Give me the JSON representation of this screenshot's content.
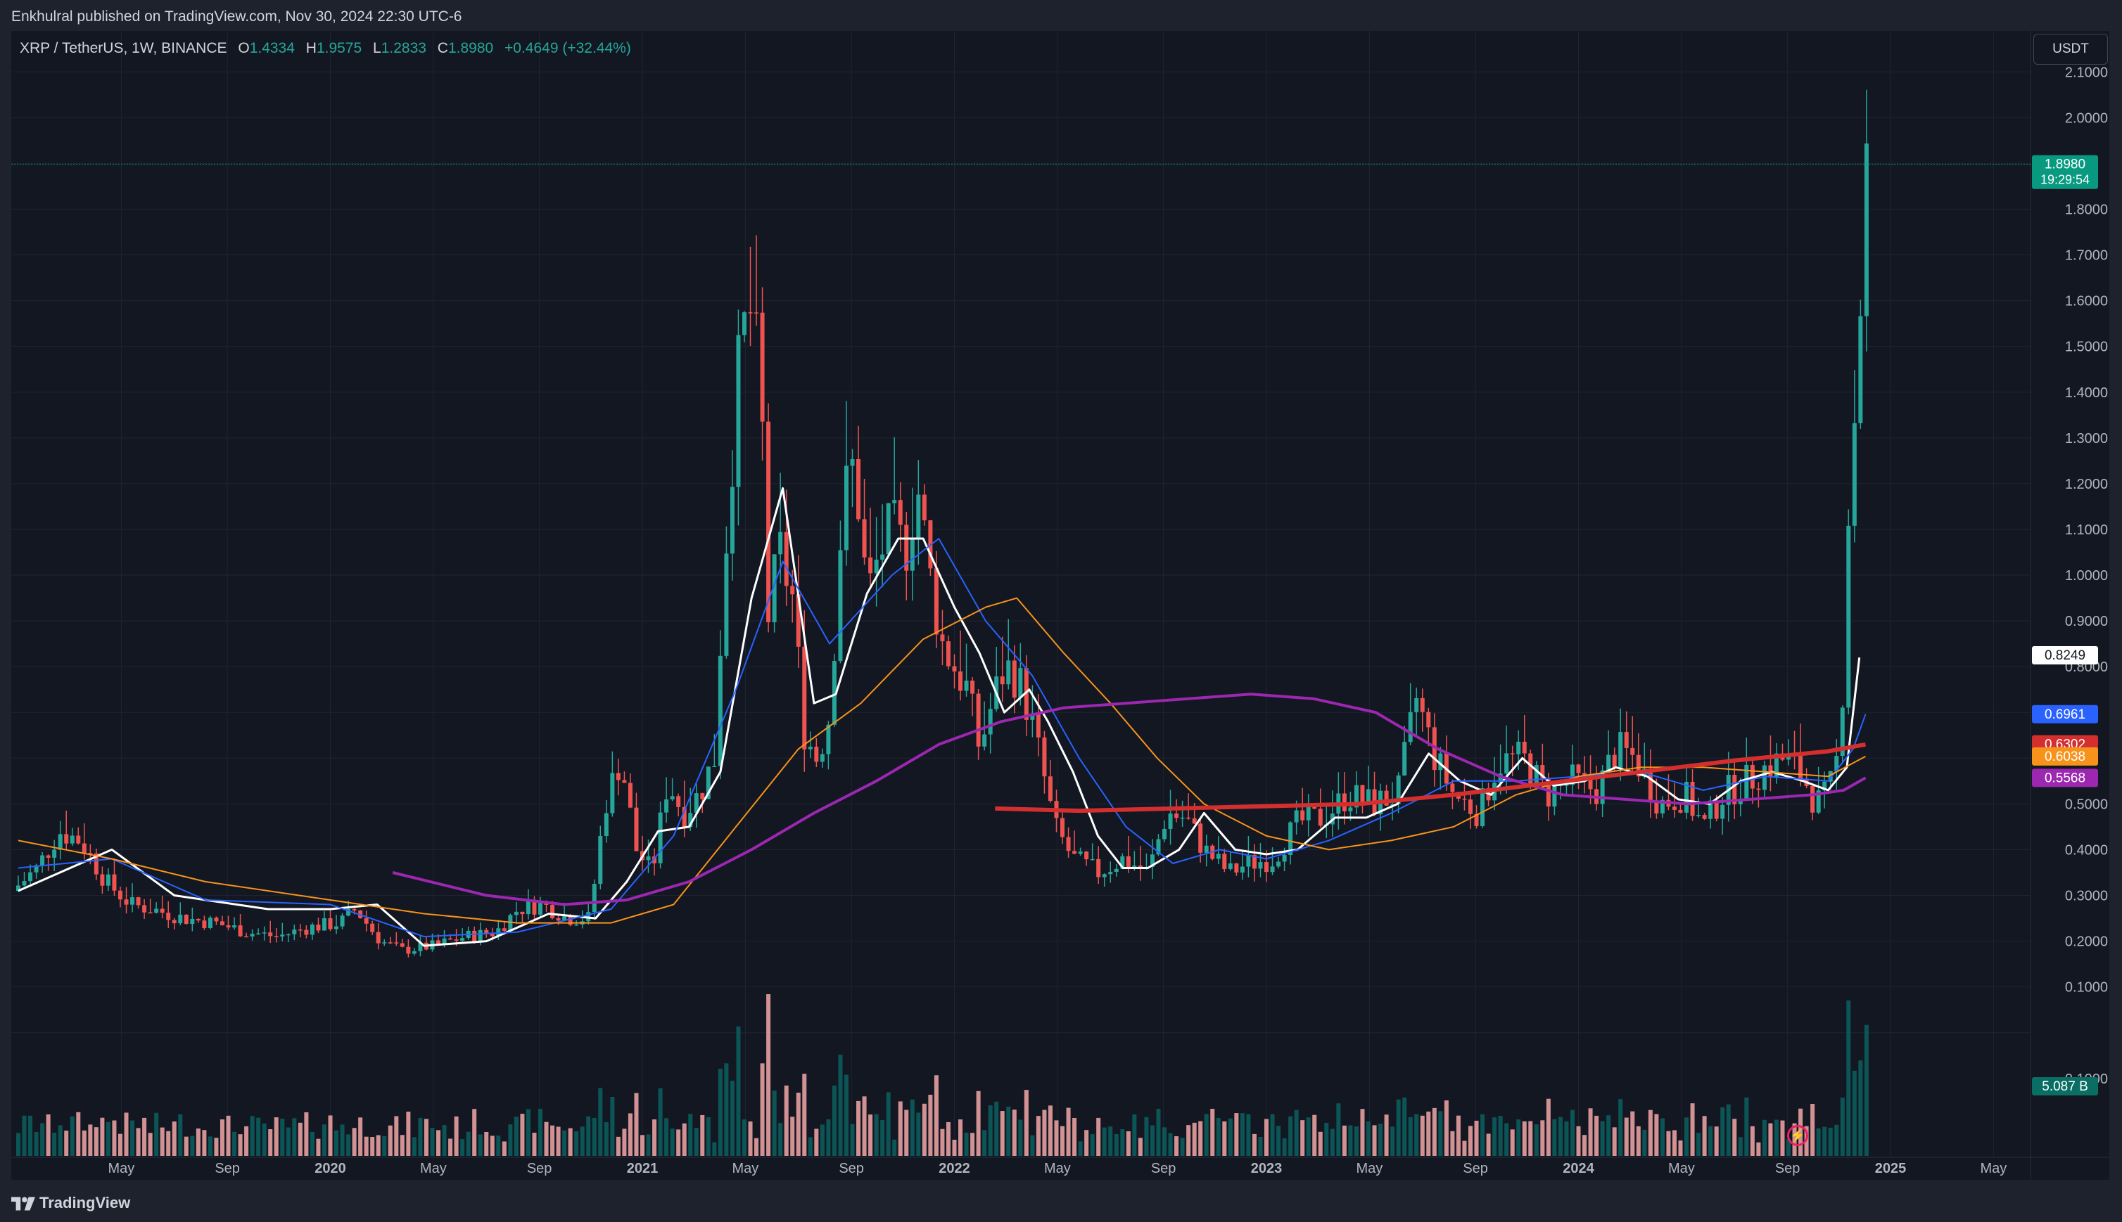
{
  "header": {
    "published": "Enkhulral published on TradingView.com, Nov 30, 2024 22:30 UTC-6"
  },
  "legend": {
    "symbol": "XRP / TetherUS, 1W, BINANCE",
    "o_label": "O",
    "o": "1.4334",
    "h_label": "H",
    "h": "1.9575",
    "l_label": "L",
    "l": "1.2833",
    "c_label": "C",
    "c": "1.8980",
    "change": "+0.4649 (+32.44%)"
  },
  "currency_button": "USDT",
  "footer": {
    "brand": "TradingView"
  },
  "colors": {
    "up": "#26a69a",
    "down": "#ef5350",
    "ma_white": "#ffffff",
    "ma_blue": "#2962ff",
    "ma_orange": "#f7931a",
    "ma_purple": "#9c27b0",
    "ma_red": "#d32f2f",
    "vol_up": "#0b5c5c",
    "vol_down": "#e8a0a0",
    "bg": "#131722"
  },
  "chart_data": {
    "type": "candlestick",
    "title": "XRP / TetherUS, 1W, BINANCE",
    "y_axis": {
      "ticks": [
        "2.1000",
        "2.0000",
        "1.8000",
        "1.7000",
        "1.6000",
        "1.5000",
        "1.4000",
        "1.3000",
        "1.2000",
        "1.1000",
        "1.0000",
        "0.9000",
        "0.8000",
        "0.5000",
        "0.4000",
        "0.3000",
        "0.2000",
        "0.1000",
        "−0.1000"
      ],
      "range": [
        -0.13,
        2.2
      ]
    },
    "x_axis": {
      "ticks": [
        {
          "label": "May",
          "t": 0.33,
          "bold": false
        },
        {
          "label": "Sep",
          "t": 0.67,
          "bold": false
        },
        {
          "label": "2020",
          "t": 1.0,
          "bold": true
        },
        {
          "label": "May",
          "t": 1.33,
          "bold": false
        },
        {
          "label": "Sep",
          "t": 1.67,
          "bold": false
        },
        {
          "label": "2021",
          "t": 2.0,
          "bold": true
        },
        {
          "label": "May",
          "t": 2.33,
          "bold": false
        },
        {
          "label": "Sep",
          "t": 2.67,
          "bold": false
        },
        {
          "label": "2022",
          "t": 3.0,
          "bold": true
        },
        {
          "label": "May",
          "t": 3.33,
          "bold": false
        },
        {
          "label": "Sep",
          "t": 3.67,
          "bold": false
        },
        {
          "label": "2023",
          "t": 4.0,
          "bold": true
        },
        {
          "label": "May",
          "t": 4.33,
          "bold": false
        },
        {
          "label": "Sep",
          "t": 4.67,
          "bold": false
        },
        {
          "label": "2024",
          "t": 5.0,
          "bold": true
        },
        {
          "label": "May",
          "t": 5.33,
          "bold": false
        },
        {
          "label": "Sep",
          "t": 5.67,
          "bold": false
        },
        {
          "label": "2025",
          "t": 6.0,
          "bold": true
        },
        {
          "label": "May",
          "t": 6.33,
          "bold": false
        }
      ]
    },
    "price_close_path": [
      [
        0.0,
        0.31
      ],
      [
        0.08,
        0.36
      ],
      [
        0.15,
        0.44
      ],
      [
        0.22,
        0.42
      ],
      [
        0.3,
        0.33
      ],
      [
        0.38,
        0.28
      ],
      [
        0.45,
        0.27
      ],
      [
        0.55,
        0.25
      ],
      [
        0.65,
        0.24
      ],
      [
        0.75,
        0.22
      ],
      [
        0.85,
        0.21
      ],
      [
        0.95,
        0.23
      ],
      [
        1.05,
        0.24
      ],
      [
        1.1,
        0.27
      ],
      [
        1.18,
        0.2
      ],
      [
        1.25,
        0.18
      ],
      [
        1.35,
        0.19
      ],
      [
        1.45,
        0.21
      ],
      [
        1.55,
        0.22
      ],
      [
        1.62,
        0.27
      ],
      [
        1.7,
        0.28
      ],
      [
        1.78,
        0.25
      ],
      [
        1.85,
        0.25
      ],
      [
        1.9,
        0.5
      ],
      [
        1.95,
        0.6
      ],
      [
        2.0,
        0.4
      ],
      [
        2.05,
        0.35
      ],
      [
        2.1,
        0.55
      ],
      [
        2.15,
        0.48
      ],
      [
        2.2,
        0.52
      ],
      [
        2.25,
        0.6
      ],
      [
        2.28,
        1.0
      ],
      [
        2.32,
        1.4
      ],
      [
        2.36,
        1.6
      ],
      [
        2.4,
        1.4
      ],
      [
        2.42,
        0.9
      ],
      [
        2.46,
        1.05
      ],
      [
        2.5,
        0.95
      ],
      [
        2.54,
        0.65
      ],
      [
        2.58,
        0.6
      ],
      [
        2.62,
        0.7
      ],
      [
        2.66,
        1.15
      ],
      [
        2.7,
        1.25
      ],
      [
        2.74,
        0.95
      ],
      [
        2.78,
        1.05
      ],
      [
        2.82,
        1.1
      ],
      [
        2.86,
        1.05
      ],
      [
        2.9,
        1.2
      ],
      [
        2.94,
        1.0
      ],
      [
        2.98,
        0.85
      ],
      [
        3.02,
        0.8
      ],
      [
        3.06,
        0.75
      ],
      [
        3.1,
        0.62
      ],
      [
        3.14,
        0.72
      ],
      [
        3.18,
        0.8
      ],
      [
        3.22,
        0.78
      ],
      [
        3.26,
        0.7
      ],
      [
        3.3,
        0.58
      ],
      [
        3.34,
        0.45
      ],
      [
        3.4,
        0.38
      ],
      [
        3.48,
        0.35
      ],
      [
        3.56,
        0.38
      ],
      [
        3.64,
        0.35
      ],
      [
        3.7,
        0.48
      ],
      [
        3.76,
        0.47
      ],
      [
        3.82,
        0.4
      ],
      [
        3.9,
        0.35
      ],
      [
        3.96,
        0.37
      ],
      [
        4.04,
        0.38
      ],
      [
        4.12,
        0.46
      ],
      [
        4.2,
        0.47
      ],
      [
        4.28,
        0.52
      ],
      [
        4.36,
        0.5
      ],
      [
        4.44,
        0.52
      ],
      [
        4.5,
        0.73
      ],
      [
        4.56,
        0.6
      ],
      [
        4.62,
        0.52
      ],
      [
        4.7,
        0.48
      ],
      [
        4.76,
        0.59
      ],
      [
        4.84,
        0.6
      ],
      [
        4.92,
        0.52
      ],
      [
        5.0,
        0.55
      ],
      [
        5.08,
        0.53
      ],
      [
        5.14,
        0.62
      ],
      [
        5.2,
        0.6
      ],
      [
        5.28,
        0.5
      ],
      [
        5.36,
        0.52
      ],
      [
        5.42,
        0.45
      ],
      [
        5.48,
        0.52
      ],
      [
        5.56,
        0.55
      ],
      [
        5.62,
        0.58
      ],
      [
        5.68,
        0.6
      ],
      [
        5.74,
        0.56
      ],
      [
        5.78,
        0.5
      ],
      [
        5.82,
        0.52
      ],
      [
        5.86,
        0.63
      ],
      [
        5.88,
        1.1
      ],
      [
        5.9,
        1.3
      ],
      [
        5.92,
        1.55
      ],
      [
        5.94,
        1.9
      ]
    ],
    "series": [
      {
        "name": "MA 0.8249",
        "color": "#ffffff",
        "width": 3,
        "points": [
          [
            0.0,
            0.31
          ],
          [
            0.3,
            0.4
          ],
          [
            0.5,
            0.3
          ],
          [
            0.8,
            0.27
          ],
          [
            1.0,
            0.27
          ],
          [
            1.15,
            0.28
          ],
          [
            1.3,
            0.19
          ],
          [
            1.5,
            0.2
          ],
          [
            1.7,
            0.26
          ],
          [
            1.85,
            0.25
          ],
          [
            1.95,
            0.33
          ],
          [
            2.05,
            0.44
          ],
          [
            2.15,
            0.45
          ],
          [
            2.25,
            0.57
          ],
          [
            2.35,
            0.95
          ],
          [
            2.45,
            1.19
          ],
          [
            2.55,
            0.72
          ],
          [
            2.62,
            0.74
          ],
          [
            2.72,
            0.96
          ],
          [
            2.82,
            1.08
          ],
          [
            2.9,
            1.08
          ],
          [
            3.0,
            0.93
          ],
          [
            3.08,
            0.83
          ],
          [
            3.16,
            0.7
          ],
          [
            3.24,
            0.75
          ],
          [
            3.3,
            0.68
          ],
          [
            3.38,
            0.57
          ],
          [
            3.46,
            0.43
          ],
          [
            3.54,
            0.36
          ],
          [
            3.62,
            0.36
          ],
          [
            3.72,
            0.4
          ],
          [
            3.8,
            0.48
          ],
          [
            3.9,
            0.4
          ],
          [
            4.0,
            0.39
          ],
          [
            4.1,
            0.4
          ],
          [
            4.22,
            0.47
          ],
          [
            4.32,
            0.47
          ],
          [
            4.42,
            0.5
          ],
          [
            4.52,
            0.61
          ],
          [
            4.62,
            0.55
          ],
          [
            4.72,
            0.52
          ],
          [
            4.82,
            0.6
          ],
          [
            4.92,
            0.54
          ],
          [
            5.02,
            0.55
          ],
          [
            5.12,
            0.58
          ],
          [
            5.22,
            0.56
          ],
          [
            5.32,
            0.51
          ],
          [
            5.42,
            0.5
          ],
          [
            5.52,
            0.55
          ],
          [
            5.62,
            0.57
          ],
          [
            5.72,
            0.55
          ],
          [
            5.8,
            0.53
          ],
          [
            5.86,
            0.58
          ],
          [
            5.9,
            0.82
          ]
        ]
      },
      {
        "name": "MA 0.6961",
        "color": "#2962ff",
        "width": 2,
        "points": [
          [
            0.0,
            0.36
          ],
          [
            0.3,
            0.38
          ],
          [
            0.6,
            0.29
          ],
          [
            1.0,
            0.28
          ],
          [
            1.3,
            0.21
          ],
          [
            1.6,
            0.22
          ],
          [
            1.9,
            0.27
          ],
          [
            2.1,
            0.43
          ],
          [
            2.3,
            0.75
          ],
          [
            2.45,
            1.03
          ],
          [
            2.6,
            0.85
          ],
          [
            2.8,
            1.0
          ],
          [
            2.95,
            1.08
          ],
          [
            3.1,
            0.9
          ],
          [
            3.25,
            0.78
          ],
          [
            3.4,
            0.6
          ],
          [
            3.55,
            0.45
          ],
          [
            3.7,
            0.37
          ],
          [
            3.85,
            0.4
          ],
          [
            4.0,
            0.38
          ],
          [
            4.2,
            0.42
          ],
          [
            4.4,
            0.48
          ],
          [
            4.6,
            0.55
          ],
          [
            4.8,
            0.55
          ],
          [
            5.0,
            0.56
          ],
          [
            5.2,
            0.57
          ],
          [
            5.4,
            0.53
          ],
          [
            5.6,
            0.56
          ],
          [
            5.8,
            0.55
          ],
          [
            5.88,
            0.62
          ],
          [
            5.92,
            0.696
          ]
        ]
      },
      {
        "name": "MA 0.6038",
        "color": "#f7931a",
        "width": 2,
        "points": [
          [
            0.0,
            0.42
          ],
          [
            0.3,
            0.38
          ],
          [
            0.6,
            0.33
          ],
          [
            1.0,
            0.29
          ],
          [
            1.3,
            0.26
          ],
          [
            1.6,
            0.24
          ],
          [
            1.9,
            0.24
          ],
          [
            2.1,
            0.28
          ],
          [
            2.3,
            0.45
          ],
          [
            2.5,
            0.62
          ],
          [
            2.7,
            0.72
          ],
          [
            2.9,
            0.86
          ],
          [
            3.1,
            0.93
          ],
          [
            3.2,
            0.95
          ],
          [
            3.35,
            0.83
          ],
          [
            3.5,
            0.72
          ],
          [
            3.65,
            0.6
          ],
          [
            3.8,
            0.5
          ],
          [
            4.0,
            0.43
          ],
          [
            4.2,
            0.4
          ],
          [
            4.4,
            0.42
          ],
          [
            4.6,
            0.45
          ],
          [
            4.8,
            0.52
          ],
          [
            5.0,
            0.56
          ],
          [
            5.2,
            0.58
          ],
          [
            5.4,
            0.58
          ],
          [
            5.6,
            0.57
          ],
          [
            5.8,
            0.56
          ],
          [
            5.92,
            0.604
          ]
        ]
      },
      {
        "name": "MA 0.5568",
        "color": "#9c27b0",
        "width": 4,
        "points": [
          [
            1.2,
            0.35
          ],
          [
            1.5,
            0.3
          ],
          [
            1.75,
            0.28
          ],
          [
            1.95,
            0.29
          ],
          [
            2.15,
            0.33
          ],
          [
            2.35,
            0.4
          ],
          [
            2.55,
            0.48
          ],
          [
            2.75,
            0.55
          ],
          [
            2.95,
            0.63
          ],
          [
            3.15,
            0.68
          ],
          [
            3.35,
            0.71
          ],
          [
            3.55,
            0.72
          ],
          [
            3.75,
            0.73
          ],
          [
            3.95,
            0.74
          ],
          [
            4.15,
            0.73
          ],
          [
            4.35,
            0.7
          ],
          [
            4.55,
            0.62
          ],
          [
            4.75,
            0.56
          ],
          [
            4.95,
            0.52
          ],
          [
            5.15,
            0.51
          ],
          [
            5.35,
            0.5
          ],
          [
            5.55,
            0.51
          ],
          [
            5.75,
            0.52
          ],
          [
            5.85,
            0.53
          ],
          [
            5.92,
            0.557
          ]
        ]
      },
      {
        "name": "MA 0.6302",
        "color": "#d32f2f",
        "width": 6,
        "points": [
          [
            3.13,
            0.49
          ],
          [
            3.4,
            0.485
          ],
          [
            3.7,
            0.49
          ],
          [
            4.0,
            0.495
          ],
          [
            4.3,
            0.5
          ],
          [
            4.6,
            0.52
          ],
          [
            4.9,
            0.545
          ],
          [
            5.2,
            0.57
          ],
          [
            5.5,
            0.595
          ],
          [
            5.8,
            0.615
          ],
          [
            5.92,
            0.63
          ]
        ]
      }
    ],
    "price_labels": [
      {
        "value": "1.8980",
        "sub": "19:29:54",
        "y": 1.898,
        "color": "#089981",
        "text_color": "#ffffff"
      },
      {
        "value": "0.8249",
        "y": 0.8249,
        "color": "#ffffff",
        "text_color": "#131722"
      },
      {
        "value": "0.6961",
        "y": 0.6961,
        "color": "#2962ff",
        "text_color": "#ffffff"
      },
      {
        "value": "0.6302",
        "y": 0.6302,
        "color": "#d32f2f",
        "text_color": "#ffffff"
      },
      {
        "value": "0.6038",
        "y": 0.6038,
        "color": "#f7931a",
        "text_color": "#ffffff"
      },
      {
        "value": "0.5568",
        "y": 0.5568,
        "color": "#9c27b0",
        "text_color": "#ffffff"
      },
      {
        "value": "5.087 B",
        "y": -0.0,
        "color": "#0a6e64",
        "text_color": "#ffffff",
        "volume": true
      }
    ]
  }
}
